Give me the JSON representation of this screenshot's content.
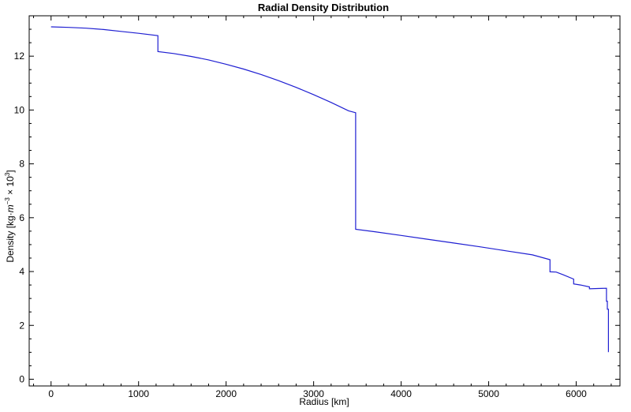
{
  "chart_data": {
    "type": "line",
    "title": "Radial Density Distribution",
    "xlabel": "Radius [km]",
    "ylabel": "Density [kg·m⁻³ × 10³]",
    "ylabel_parts": {
      "prefix": "Density [kg",
      "dot": "·",
      "m": "m",
      "exp1": "−3",
      "times": " × 10",
      "exp2": "3",
      "suffix": "]"
    },
    "xlim": [
      -250,
      6500
    ],
    "ylim": [
      -0.25,
      13.5
    ],
    "x_ticks": [
      0,
      1000,
      2000,
      3000,
      4000,
      5000,
      6000
    ],
    "x_tick_labels": [
      "0",
      "1000",
      "2000",
      "3000",
      "4000",
      "5000",
      "6000"
    ],
    "y_ticks": [
      0,
      2,
      4,
      6,
      8,
      10,
      12
    ],
    "y_tick_labels": [
      "0",
      "2",
      "4",
      "6",
      "8",
      "10",
      "12"
    ],
    "grid": false,
    "series": [
      {
        "color": "#1f1fd2",
        "x": [
          0,
          200,
          400,
          600,
          800,
          1000,
          1221,
          1221,
          1400,
          1600,
          1800,
          2000,
          2200,
          2400,
          2600,
          2800,
          3000,
          3200,
          3400,
          3480,
          3480,
          3700,
          4000,
          4300,
          4600,
          4900,
          5200,
          5500,
          5701,
          5701,
          5771,
          5850,
          5971,
          5971,
          6050,
          6151,
          6151,
          6250,
          6346,
          6346,
          6356,
          6356,
          6368,
          6368,
          6371
        ],
        "y": [
          13.09,
          13.07,
          13.04,
          12.99,
          12.92,
          12.85,
          12.76,
          12.17,
          12.1,
          11.99,
          11.86,
          11.7,
          11.52,
          11.32,
          11.09,
          10.84,
          10.57,
          10.28,
          9.97,
          9.9,
          5.57,
          5.48,
          5.34,
          5.2,
          5.06,
          4.92,
          4.77,
          4.62,
          4.44,
          3.99,
          3.98,
          3.88,
          3.72,
          3.54,
          3.5,
          3.43,
          3.36,
          3.37,
          3.38,
          2.9,
          2.9,
          2.6,
          2.6,
          1.02,
          1.02
        ]
      }
    ]
  }
}
